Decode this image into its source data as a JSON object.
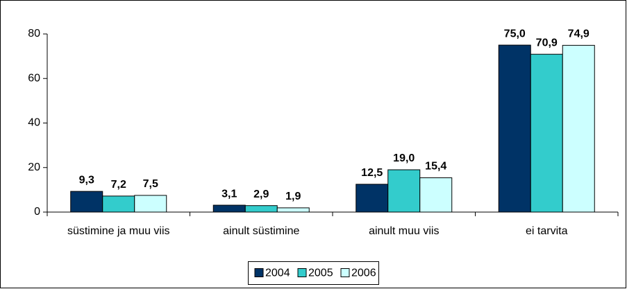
{
  "chart_data": {
    "type": "bar",
    "categories": [
      "süstimine ja muu viis",
      "ainult süstimine",
      "ainult muu viis",
      "ei tarvita"
    ],
    "series": [
      {
        "name": "2004",
        "color": "#003366",
        "values": [
          9.3,
          3.1,
          12.5,
          75.0
        ],
        "value_labels": [
          "9,3",
          "3,1",
          "12,5",
          "75,0"
        ]
      },
      {
        "name": "2005",
        "color": "#33cccc",
        "values": [
          7.2,
          2.9,
          19.0,
          70.9
        ],
        "value_labels": [
          "7,2",
          "2,9",
          "19,0",
          "70,9"
        ]
      },
      {
        "name": "2006",
        "color": "#ccffff",
        "values": [
          7.5,
          1.9,
          15.4,
          74.9
        ],
        "value_labels": [
          "7,5",
          "1,9",
          "15,4",
          "74,9"
        ]
      }
    ],
    "ylim": [
      0,
      80
    ],
    "yticks": [
      0,
      20,
      40,
      60,
      80
    ],
    "grid": false,
    "legend": "bottom"
  }
}
